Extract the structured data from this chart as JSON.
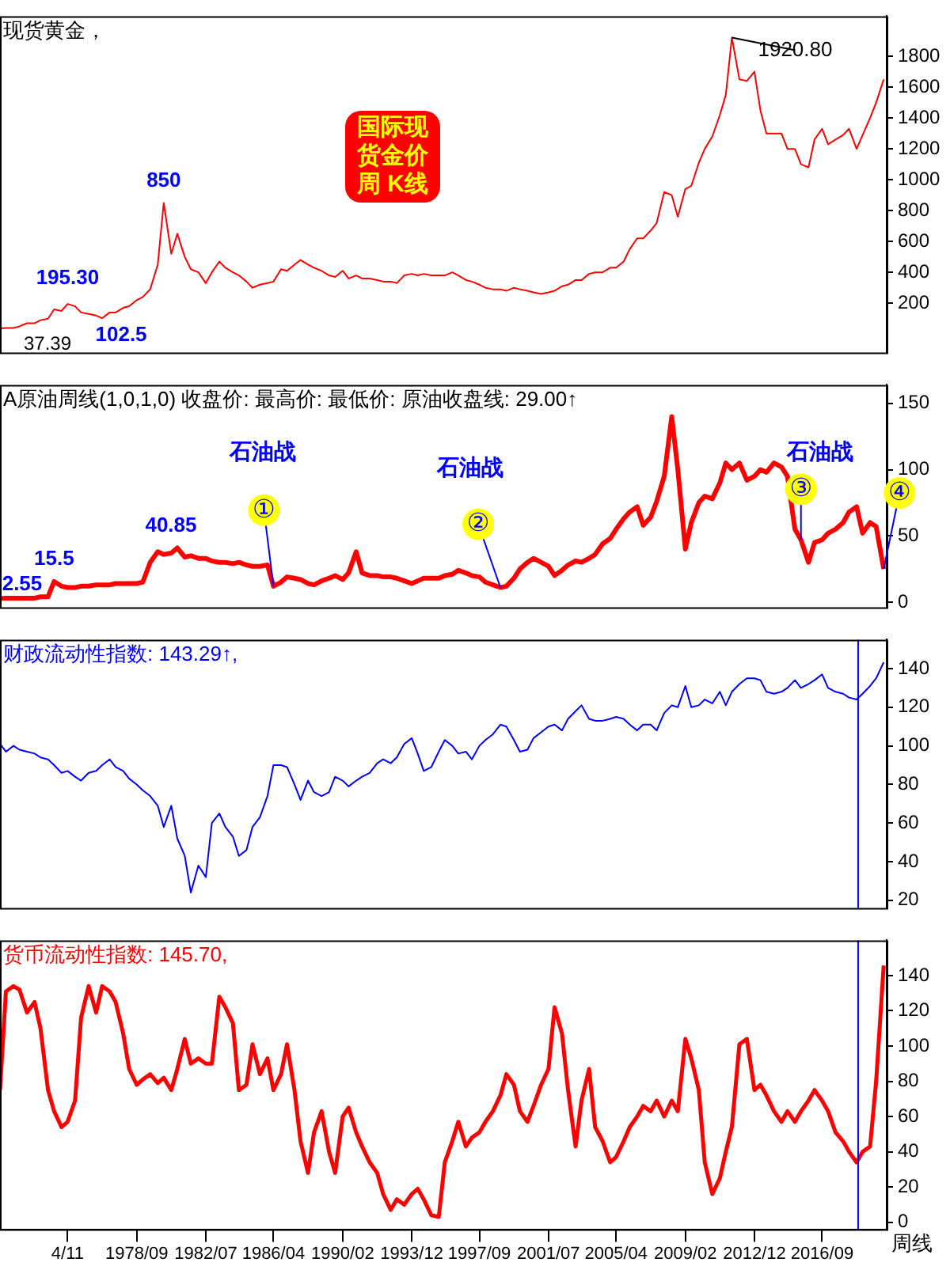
{
  "chart_data": [
    {
      "type": "line",
      "title": "现货黄金，",
      "tick_labels": "y",
      "xlim": [
        "1971-02",
        "2020-04"
      ],
      "ylim": [
        -120,
        2060
      ],
      "yticks": [
        200,
        400,
        600,
        800,
        1000,
        1200,
        1400,
        1600,
        1800
      ],
      "x": [
        "1971-02",
        "1971-06",
        "1971-11",
        "1972-03",
        "1972-08",
        "1973-01",
        "1973-05",
        "1973-10",
        "1974-02",
        "1974-07",
        "1974-11",
        "1975-04",
        "1975-08",
        "1976-01",
        "1976-06",
        "1976-10",
        "1977-03",
        "1977-07",
        "1977-12",
        "1978-04",
        "1978-09",
        "1979-01",
        "1979-06",
        "1979-11",
        "1980-03",
        "1980-08",
        "1980-12",
        "1981-05",
        "1981-09",
        "1982-02",
        "1982-07",
        "1982-11",
        "1983-04",
        "1983-08",
        "1984-01",
        "1984-05",
        "1984-10",
        "1985-02",
        "1985-07",
        "1985-12",
        "1986-04",
        "1986-09",
        "1987-01",
        "1987-06",
        "1987-10",
        "1988-03",
        "1988-07",
        "1988-12",
        "1989-05",
        "1989-09",
        "1990-02",
        "1990-06",
        "1990-11",
        "1991-03",
        "1991-08",
        "1992-01",
        "1992-05",
        "1992-10",
        "1993-02",
        "1993-07",
        "1993-12",
        "1994-04",
        "1994-08",
        "1995-01",
        "1995-06",
        "1995-10",
        "1996-03",
        "1996-07",
        "1996-12",
        "1997-04",
        "1997-09",
        "1998-01",
        "1998-06",
        "1998-11",
        "1999-03",
        "1999-08",
        "1999-12",
        "2000-05",
        "2000-09",
        "2001-02",
        "2001-07",
        "2001-11",
        "2002-04",
        "2002-08",
        "2003-01",
        "2003-05",
        "2003-10",
        "2004-02",
        "2004-07",
        "2004-12",
        "2005-04",
        "2005-09",
        "2006-01",
        "2006-06",
        "2006-10",
        "2007-03",
        "2007-07",
        "2007-12",
        "2008-05",
        "2008-09",
        "2009-02",
        "2009-06",
        "2009-11",
        "2010-03",
        "2010-08",
        "2011-01",
        "2011-05",
        "2011-09",
        "2012-02",
        "2012-07",
        "2012-12",
        "2013-04",
        "2013-08",
        "2014-01",
        "2014-06",
        "2014-10",
        "2015-03",
        "2015-07",
        "2015-12",
        "2016-04",
        "2016-09",
        "2017-01",
        "2017-06",
        "2017-11",
        "2018-03",
        "2018-08",
        "2018-12",
        "2019-05",
        "2019-09",
        "2020-02"
      ],
      "series": [
        {
          "color": "#ff0000",
          "values": [
            37.39,
            40,
            40,
            50,
            70,
            70,
            90,
            100,
            160,
            150,
            195.3,
            180,
            140,
            130,
            120,
            102.5,
            140,
            140,
            170,
            180,
            220,
            240,
            290,
            450,
            850,
            520,
            650,
            500,
            420,
            400,
            330,
            400,
            470,
            430,
            400,
            380,
            340,
            300,
            320,
            330,
            340,
            420,
            410,
            450,
            480,
            450,
            430,
            410,
            380,
            370,
            410,
            360,
            380,
            360,
            360,
            350,
            340,
            340,
            330,
            380,
            390,
            380,
            390,
            380,
            380,
            380,
            400,
            380,
            350,
            340,
            320,
            300,
            290,
            290,
            280,
            300,
            290,
            280,
            270,
            260,
            270,
            280,
            310,
            320,
            350,
            350,
            390,
            400,
            400,
            430,
            430,
            470,
            550,
            620,
            620,
            670,
            720,
            920,
            900,
            760,
            940,
            960,
            1110,
            1200,
            1280,
            1420,
            1550,
            1920.8,
            1650,
            1640,
            1700,
            1450,
            1300,
            1300,
            1300,
            1200,
            1200,
            1100,
            1080,
            1260,
            1330,
            1230,
            1260,
            1290,
            1330,
            1200,
            1290,
            1400,
            1500,
            1650
          ]
        }
      ],
      "annotations": [
        {
          "text": "37.39",
          "x": "1971-02",
          "y": 37.39
        },
        {
          "text": "195.30",
          "x": "1974-11",
          "y": 195.3
        },
        {
          "text": "102.5",
          "x": "1976-10",
          "y": 102.5
        },
        {
          "text": "850",
          "x": "1980-03",
          "y": 850
        },
        {
          "text": "1920.80",
          "x": "2011-09",
          "y": 1920.8
        },
        "国际现货金价周 K线"
      ]
    },
    {
      "type": "line",
      "title": "A原油周线(1,0,1,0) 收盘价: 最高价: 最低价: 原油收盘线: 29.00↑",
      "tick_labels": "y",
      "xlim": [
        "1971-02",
        "2020-04"
      ],
      "ylim": [
        -4,
        164
      ],
      "yticks": [
        0,
        50,
        100,
        150
      ],
      "x": [
        "1971-02",
        "1971-06",
        "1971-11",
        "1972-03",
        "1972-08",
        "1973-01",
        "1973-05",
        "1973-10",
        "1974-02",
        "1974-07",
        "1974-11",
        "1975-04",
        "1975-08",
        "1976-01",
        "1976-06",
        "1976-10",
        "1977-03",
        "1977-07",
        "1977-12",
        "1978-04",
        "1978-09",
        "1979-01",
        "1979-06",
        "1979-11",
        "1980-03",
        "1980-08",
        "1980-12",
        "1981-05",
        "1981-09",
        "1982-02",
        "1982-07",
        "1982-11",
        "1983-04",
        "1983-08",
        "1984-01",
        "1984-05",
        "1984-10",
        "1985-02",
        "1985-07",
        "1985-12",
        "1986-04",
        "1986-09",
        "1987-01",
        "1987-06",
        "1987-10",
        "1988-03",
        "1988-07",
        "1988-12",
        "1989-05",
        "1989-09",
        "1990-02",
        "1990-06",
        "1990-11",
        "1991-03",
        "1991-08",
        "1992-01",
        "1992-05",
        "1992-10",
        "1993-02",
        "1993-07",
        "1993-12",
        "1994-04",
        "1994-08",
        "1995-01",
        "1995-06",
        "1995-10",
        "1996-03",
        "1996-07",
        "1996-12",
        "1997-04",
        "1997-09",
        "1998-01",
        "1998-06",
        "1998-11",
        "1999-03",
        "1999-08",
        "1999-12",
        "2000-05",
        "2000-09",
        "2001-02",
        "2001-07",
        "2001-11",
        "2002-04",
        "2002-08",
        "2003-01",
        "2003-05",
        "2003-10",
        "2004-02",
        "2004-07",
        "2004-12",
        "2005-04",
        "2005-09",
        "2006-01",
        "2006-06",
        "2006-10",
        "2007-03",
        "2007-07",
        "2007-12",
        "2008-05",
        "2008-09",
        "2009-02",
        "2009-06",
        "2009-11",
        "2010-03",
        "2010-08",
        "2011-01",
        "2011-05",
        "2011-09",
        "2012-02",
        "2012-07",
        "2012-12",
        "2013-04",
        "2013-08",
        "2014-01",
        "2014-06",
        "2014-10",
        "2015-03",
        "2015-07",
        "2015-12",
        "2016-04",
        "2016-09",
        "2017-01",
        "2017-06",
        "2017-11",
        "2018-03",
        "2018-08",
        "2018-12",
        "2019-05",
        "2019-09",
        "2020-02"
      ],
      "series": [
        {
          "color": "#ff0000",
          "values": [
            2.55,
            3,
            3,
            3,
            3,
            3,
            4,
            4,
            15.5,
            12,
            11,
            11,
            12,
            12,
            13,
            13,
            13,
            14,
            14,
            14,
            14,
            15,
            30,
            38,
            36,
            37,
            40.85,
            34,
            35,
            33,
            33,
            31,
            30,
            30,
            29,
            30,
            28,
            27,
            27,
            28,
            12,
            15,
            19,
            18,
            17,
            14,
            13,
            16,
            18,
            20,
            17,
            22,
            38,
            22,
            20,
            20,
            19,
            19,
            18,
            16,
            14,
            16,
            18,
            18,
            18,
            20,
            21,
            24,
            22,
            20,
            19,
            15,
            13,
            11,
            12,
            18,
            25,
            30,
            33,
            30,
            27,
            20,
            24,
            28,
            31,
            30,
            33,
            36,
            44,
            48,
            55,
            63,
            68,
            72,
            58,
            64,
            76,
            95,
            140,
            100,
            40,
            60,
            75,
            80,
            78,
            90,
            105,
            100,
            105,
            92,
            95,
            100,
            98,
            105,
            102,
            95,
            55,
            47,
            30,
            45,
            47,
            52,
            55,
            60,
            68,
            72,
            52,
            60,
            57,
            25
          ]
        }
      ],
      "annotations": [
        {
          "text": "2.55",
          "x": "1971-02",
          "y": 2.55
        },
        {
          "text": "15.5",
          "x": "1974-02",
          "y": 15.5
        },
        {
          "text": "40.85",
          "x": "1980-12",
          "y": 40.85
        },
        {
          "text": "①",
          "x": "1986-04",
          "y": 12
        },
        "石油战",
        {
          "text": "②",
          "x": "1998-11",
          "y": 11
        },
        "石油战",
        {
          "text": "③",
          "x": "2015-07",
          "y": 47
        },
        "石油战",
        {
          "text": "④",
          "x": "2020-02",
          "y": 25
        }
      ]
    },
    {
      "type": "line",
      "title": "财政流动性指数: 143.29↑,",
      "tick_labels": "y",
      "xlim": [
        "1971-02",
        "2020-04"
      ],
      "ylim": [
        16,
        155
      ],
      "yticks": [
        20,
        40,
        60,
        80,
        100,
        120,
        140
      ],
      "x": [
        "1971-02",
        "1971-06",
        "1971-11",
        "1972-03",
        "1972-08",
        "1973-01",
        "1973-05",
        "1973-10",
        "1974-02",
        "1974-07",
        "1974-11",
        "1975-04",
        "1975-08",
        "1976-01",
        "1976-06",
        "1976-10",
        "1977-03",
        "1977-07",
        "1977-12",
        "1978-04",
        "1978-09",
        "1979-01",
        "1979-06",
        "1979-11",
        "1980-03",
        "1980-08",
        "1980-12",
        "1981-05",
        "1981-09",
        "1982-02",
        "1982-07",
        "1982-11",
        "1983-04",
        "1983-08",
        "1984-01",
        "1984-05",
        "1984-10",
        "1985-02",
        "1985-07",
        "1985-12",
        "1986-04",
        "1986-09",
        "1987-01",
        "1987-06",
        "1987-10",
        "1988-03",
        "1988-07",
        "1988-12",
        "1989-05",
        "1989-09",
        "1990-02",
        "1990-06",
        "1990-11",
        "1991-03",
        "1991-08",
        "1992-01",
        "1992-05",
        "1992-10",
        "1993-02",
        "1993-07",
        "1993-12",
        "1994-04",
        "1994-08",
        "1995-01",
        "1995-06",
        "1995-10",
        "1996-03",
        "1996-07",
        "1996-12",
        "1997-04",
        "1997-09",
        "1998-01",
        "1998-06",
        "1998-11",
        "1999-03",
        "1999-08",
        "1999-12",
        "2000-05",
        "2000-09",
        "2001-02",
        "2001-07",
        "2001-11",
        "2002-04",
        "2002-08",
        "2003-01",
        "2003-05",
        "2003-10",
        "2004-02",
        "2004-07",
        "2004-12",
        "2005-04",
        "2005-09",
        "2006-01",
        "2006-06",
        "2006-10",
        "2007-03",
        "2007-07",
        "2007-12",
        "2008-05",
        "2008-09",
        "2009-02",
        "2009-06",
        "2009-11",
        "2010-03",
        "2010-08",
        "2011-01",
        "2011-05",
        "2011-09",
        "2012-02",
        "2012-07",
        "2012-12",
        "2013-04",
        "2013-08",
        "2014-01",
        "2014-06",
        "2014-10",
        "2015-03",
        "2015-07",
        "2015-12",
        "2016-04",
        "2016-09",
        "2017-01",
        "2017-06",
        "2017-11",
        "2018-03",
        "2018-08",
        "2018-12",
        "2019-05",
        "2019-09",
        "2020-02"
      ],
      "series": [
        {
          "color": "#0000ff",
          "values": [
            101,
            97,
            100,
            98,
            97,
            96,
            94,
            93,
            90,
            86,
            87,
            84,
            82,
            86,
            87,
            90,
            93,
            89,
            87,
            83,
            80,
            77,
            74,
            69,
            58,
            69,
            52,
            43,
            24,
            38,
            32,
            60,
            65,
            58,
            53,
            43,
            46,
            58,
            63,
            74,
            90,
            90,
            89,
            80,
            72,
            82,
            76,
            74,
            76,
            84,
            82,
            79,
            82,
            84,
            86,
            91,
            93,
            91,
            94,
            101,
            104,
            96,
            87,
            89,
            97,
            103,
            100,
            96,
            97,
            93,
            100,
            103,
            106,
            111,
            110,
            103,
            97,
            98,
            104,
            107,
            110,
            111,
            108,
            114,
            118,
            121,
            114,
            113,
            113,
            114,
            115,
            114,
            111,
            108,
            111,
            111,
            108,
            117,
            121,
            120,
            131,
            120,
            121,
            124,
            122,
            128,
            121,
            128,
            132,
            135,
            135,
            134,
            128,
            127,
            128,
            130,
            134,
            130,
            132,
            134,
            137,
            130,
            128,
            127,
            125,
            124,
            127,
            131,
            135,
            143.29
          ]
        }
      ],
      "ref_lines": [
        {
          "axis": "x",
          "value": "2018-09",
          "color": "#0000ff"
        }
      ]
    },
    {
      "type": "line",
      "title": "货币流动性指数: 145.70,",
      "xlabel": "周线",
      "xlim": [
        "1971-02",
        "2020-04"
      ],
      "ylim": [
        -4,
        160
      ],
      "yticks": [
        0,
        20,
        40,
        60,
        80,
        100,
        120,
        140
      ],
      "xticks": [
        {
          "value": "1974-11",
          "label": "4/11"
        },
        {
          "value": "1978-09",
          "label": "1978/09"
        },
        {
          "value": "1982-07",
          "label": "1982/07"
        },
        {
          "value": "1986-04",
          "label": "1986/04"
        },
        {
          "value": "1990-02",
          "label": "1990/02"
        },
        {
          "value": "1993-12",
          "label": "1993/12"
        },
        {
          "value": "1997-09",
          "label": "1997/09"
        },
        {
          "value": "2001-07",
          "label": "2001/07"
        },
        {
          "value": "2005-04",
          "label": "2005/04"
        },
        {
          "value": "2009-02",
          "label": "2009/02"
        },
        {
          "value": "2012-12",
          "label": "2012/12"
        },
        {
          "value": "2016-09",
          "label": "2016/09"
        }
      ],
      "x": [
        "1971-02",
        "1971-06",
        "1971-11",
        "1972-03",
        "1972-08",
        "1973-01",
        "1973-05",
        "1973-10",
        "1974-02",
        "1974-07",
        "1974-11",
        "1975-04",
        "1975-08",
        "1976-01",
        "1976-06",
        "1976-10",
        "1977-03",
        "1977-07",
        "1977-12",
        "1978-04",
        "1978-09",
        "1979-01",
        "1979-06",
        "1979-11",
        "1980-03",
        "1980-08",
        "1980-12",
        "1981-05",
        "1981-09",
        "1982-02",
        "1982-07",
        "1982-11",
        "1983-04",
        "1983-08",
        "1984-01",
        "1984-05",
        "1984-10",
        "1985-02",
        "1985-07",
        "1985-12",
        "1986-04",
        "1986-09",
        "1987-01",
        "1987-06",
        "1987-10",
        "1988-03",
        "1988-07",
        "1988-12",
        "1989-05",
        "1989-09",
        "1990-02",
        "1990-06",
        "1990-11",
        "1991-03",
        "1991-08",
        "1992-01",
        "1992-05",
        "1992-10",
        "1993-02",
        "1993-07",
        "1993-12",
        "1994-04",
        "1994-08",
        "1995-01",
        "1995-06",
        "1995-10",
        "1996-03",
        "1996-07",
        "1996-12",
        "1997-04",
        "1997-09",
        "1998-01",
        "1998-06",
        "1998-11",
        "1999-03",
        "1999-08",
        "1999-12",
        "2000-05",
        "2000-09",
        "2001-02",
        "2001-07",
        "2001-11",
        "2002-04",
        "2002-08",
        "2003-01",
        "2003-05",
        "2003-10",
        "2004-02",
        "2004-07",
        "2004-12",
        "2005-04",
        "2005-09",
        "2006-01",
        "2006-06",
        "2006-10",
        "2007-03",
        "2007-07",
        "2007-12",
        "2008-05",
        "2008-09",
        "2009-02",
        "2009-06",
        "2009-11",
        "2010-03",
        "2010-08",
        "2011-01",
        "2011-05",
        "2011-09",
        "2012-02",
        "2012-07",
        "2012-12",
        "2013-04",
        "2013-08",
        "2014-01",
        "2014-06",
        "2014-10",
        "2015-03",
        "2015-07",
        "2015-12",
        "2016-04",
        "2016-09",
        "2017-01",
        "2017-06",
        "2017-11",
        "2018-03",
        "2018-08",
        "2018-12",
        "2019-05",
        "2019-09",
        "2020-02"
      ],
      "series": [
        {
          "color": "#ff0000",
          "values": [
            75,
            131,
            134,
            132,
            119,
            125,
            110,
            75,
            63,
            54,
            57,
            69,
            116,
            134,
            119,
            134,
            131,
            125,
            107,
            87,
            78,
            81,
            84,
            79,
            82,
            75,
            87,
            104,
            90,
            93,
            90,
            90,
            128,
            122,
            113,
            75,
            78,
            101,
            84,
            93,
            75,
            84,
            101,
            75,
            46,
            28,
            51,
            63,
            40,
            28,
            60,
            65,
            51,
            43,
            34,
            28,
            16,
            7,
            13,
            10,
            16,
            19,
            13,
            4,
            3,
            34,
            46,
            57,
            43,
            48,
            51,
            57,
            63,
            72,
            84,
            78,
            63,
            57,
            66,
            78,
            87,
            122,
            107,
            75,
            43,
            69,
            87,
            54,
            46,
            34,
            37,
            46,
            54,
            60,
            66,
            63,
            69,
            60,
            69,
            63,
            104,
            93,
            75,
            34,
            16,
            25,
            40,
            54,
            101,
            104,
            75,
            78,
            72,
            63,
            57,
            63,
            57,
            63,
            69,
            75,
            69,
            63,
            51,
            46,
            40,
            34,
            40,
            43,
            80,
            145.7
          ]
        }
      ],
      "ref_lines": [
        {
          "axis": "x",
          "value": "2018-09",
          "color": "#0000ff"
        }
      ]
    }
  ]
}
